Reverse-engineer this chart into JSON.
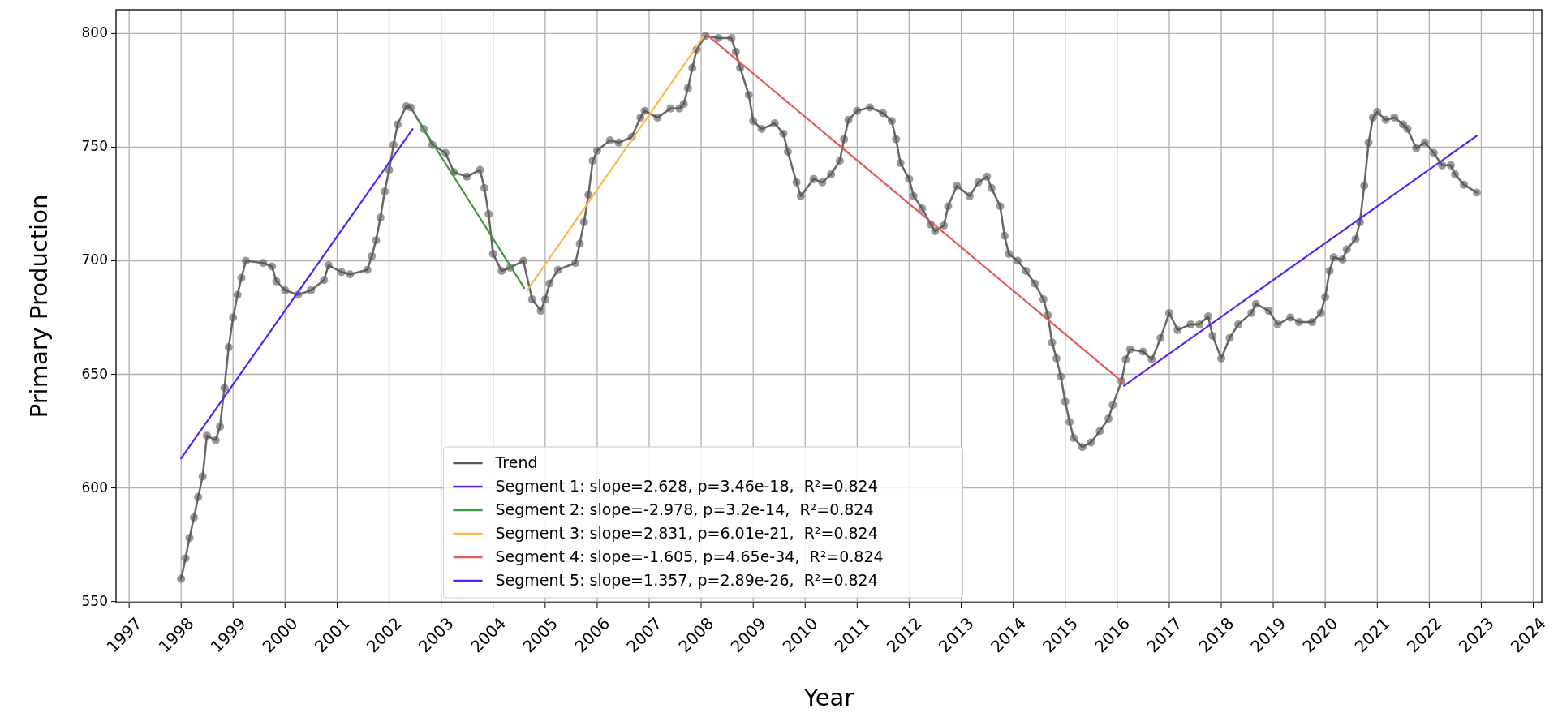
{
  "chart_data": {
    "type": "line",
    "xlabel": "Year",
    "ylabel": "Primary Production",
    "xlim": [
      "1996-10",
      "2024-03"
    ],
    "ylim": [
      549.5,
      810.5
    ],
    "xticks": [
      {
        "value": "1997",
        "label": "1997"
      },
      {
        "value": "1998",
        "label": "1998"
      },
      {
        "value": "1999",
        "label": "1999"
      },
      {
        "value": "2000",
        "label": "2000"
      },
      {
        "value": "2001",
        "label": "2001"
      },
      {
        "value": "2002",
        "label": "2002"
      },
      {
        "value": "2003",
        "label": "2003"
      },
      {
        "value": "2004",
        "label": "2004"
      },
      {
        "value": "2005",
        "label": "2005"
      },
      {
        "value": "2006",
        "label": "2006"
      },
      {
        "value": "2007",
        "label": "2007"
      },
      {
        "value": "2008",
        "label": "2008"
      },
      {
        "value": "2009",
        "label": "2009"
      },
      {
        "value": "2010",
        "label": "2010"
      },
      {
        "value": "2011",
        "label": "2011"
      },
      {
        "value": "2012",
        "label": "2012"
      },
      {
        "value": "2013",
        "label": "2013"
      },
      {
        "value": "2014",
        "label": "2014"
      },
      {
        "value": "2015",
        "label": "2015"
      },
      {
        "value": "2016",
        "label": "2016"
      },
      {
        "value": "2017",
        "label": "2017"
      },
      {
        "value": "2018",
        "label": "2018"
      },
      {
        "value": "2019",
        "label": "2019"
      },
      {
        "value": "2020",
        "label": "2020"
      },
      {
        "value": "2021",
        "label": "2021"
      },
      {
        "value": "2022",
        "label": "2022"
      },
      {
        "value": "2023",
        "label": "2023"
      },
      {
        "value": "2024",
        "label": "2024"
      }
    ],
    "yticks": [
      550,
      600,
      650,
      700,
      750,
      800
    ],
    "grid": true,
    "legend": "bottom",
    "line_style": "solid",
    "series": [
      {
        "name": "Trend",
        "color": "#555555",
        "marker": "circle",
        "x": [
          "1998-01",
          "1998-02",
          "1998-03",
          "1998-04",
          "1998-05",
          "1998-06",
          "1998-07",
          "1998-09",
          "1998-10",
          "1998-11",
          "1998-12",
          "1999-01",
          "1999-02",
          "1999-03",
          "1999-04",
          "1999-08",
          "1999-10",
          "1999-11",
          "2000-01",
          "2000-04",
          "2000-07",
          "2000-10",
          "2000-11",
          "2001-02",
          "2001-04",
          "2001-08",
          "2001-09",
          "2001-10",
          "2001-11",
          "2001-12",
          "2002-01",
          "2002-02",
          "2002-03",
          "2002-05",
          "2002-06",
          "2002-09",
          "2002-11",
          "2003-02",
          "2003-04",
          "2003-07",
          "2003-10",
          "2003-11",
          "2003-12",
          "2004-01",
          "2004-03",
          "2004-05",
          "2004-08",
          "2004-10",
          "2004-12",
          "2005-01",
          "2005-02",
          "2005-04",
          "2005-08",
          "2005-09",
          "2005-10",
          "2005-11",
          "2005-12",
          "2006-01",
          "2006-04",
          "2006-06",
          "2006-09",
          "2006-11",
          "2006-12",
          "2007-03",
          "2007-06",
          "2007-08",
          "2007-09",
          "2007-10",
          "2007-11",
          "2007-12",
          "2008-02",
          "2008-05",
          "2008-08",
          "2008-09",
          "2008-10",
          "2008-12",
          "2009-01",
          "2009-03",
          "2009-06",
          "2009-08",
          "2009-09",
          "2009-11",
          "2009-12",
          "2010-03",
          "2010-05",
          "2010-07",
          "2010-09",
          "2010-10",
          "2010-11",
          "2011-01",
          "2011-04",
          "2011-07",
          "2011-09",
          "2011-10",
          "2011-11",
          "2012-01",
          "2012-02",
          "2012-04",
          "2012-06",
          "2012-07",
          "2012-09",
          "2012-10",
          "2012-12",
          "2013-03",
          "2013-05",
          "2013-07",
          "2013-08",
          "2013-10",
          "2013-11",
          "2013-12",
          "2014-02",
          "2014-04",
          "2014-06",
          "2014-08",
          "2014-09",
          "2014-10",
          "2014-11",
          "2014-12",
          "2015-01",
          "2015-02",
          "2015-03",
          "2015-05",
          "2015-07",
          "2015-09",
          "2015-11",
          "2015-12",
          "2016-02",
          "2016-03",
          "2016-04",
          "2016-07",
          "2016-09",
          "2016-11",
          "2017-01",
          "2017-03",
          "2017-06",
          "2017-08",
          "2017-10",
          "2017-11",
          "2018-01",
          "2018-03",
          "2018-05",
          "2018-08",
          "2018-09",
          "2018-12",
          "2019-02",
          "2019-05",
          "2019-07",
          "2019-10",
          "2019-12",
          "2020-01",
          "2020-02",
          "2020-03",
          "2020-05",
          "2020-06",
          "2020-08",
          "2020-09",
          "2020-10",
          "2020-11",
          "2020-12",
          "2021-01",
          "2021-03",
          "2021-05",
          "2021-07",
          "2021-08",
          "2021-10",
          "2021-12",
          "2022-02",
          "2022-04",
          "2022-06",
          "2022-07",
          "2022-09",
          "2022-12"
        ],
        "values": [
          560,
          569,
          578,
          587,
          596,
          605,
          623,
          621,
          627,
          644,
          662,
          675,
          685,
          692.5,
          700,
          699,
          697.5,
          691,
          687,
          685,
          687,
          691.5,
          698,
          695,
          694,
          696,
          702,
          709,
          719,
          730.5,
          740,
          751,
          760,
          768,
          767.5,
          758,
          751,
          747.5,
          739,
          737,
          740,
          732,
          720.5,
          703,
          695.5,
          697,
          700,
          683,
          678,
          683,
          690,
          696,
          699,
          707.5,
          717,
          729,
          744,
          748.5,
          753,
          752,
          754.5,
          763,
          766,
          763,
          767,
          767,
          769,
          776,
          785,
          793,
          799,
          798,
          798,
          792,
          785,
          773,
          761.5,
          758,
          760.5,
          756,
          748,
          734.5,
          728.5,
          736,
          734.5,
          738,
          744,
          753.5,
          762,
          766,
          767.5,
          765,
          761.5,
          753.5,
          743,
          736,
          728.5,
          723,
          716,
          713,
          715.5,
          724,
          733,
          728.5,
          734.5,
          737,
          732,
          724,
          711,
          703,
          700,
          695.5,
          690,
          683,
          676,
          664,
          657,
          649,
          638,
          629,
          622,
          618,
          620,
          625,
          630.5,
          636.5,
          647,
          656.5,
          661,
          660,
          656.5,
          666,
          677,
          669.5,
          672,
          672,
          675.5,
          667,
          657,
          666,
          672,
          677,
          681,
          678,
          672,
          675,
          673,
          673,
          677,
          684,
          695.5,
          701.5,
          700.5,
          705,
          709.5,
          717,
          733,
          752,
          763,
          765.5,
          762,
          763,
          760,
          758,
          749.5,
          752,
          747.5,
          742,
          742,
          738,
          733.5,
          730
        ]
      },
      {
        "name": "Segment 1: slope=2.628, p=3.46e-18,  R²=0.824",
        "color": "#5b1ff5",
        "x": [
          "1998-01-01",
          "2002-06-15"
        ],
        "values": [
          613,
          758
        ]
      },
      {
        "name": "Segment 2: slope=-2.978, p=3.2e-14,  R²=0.824",
        "color": "#3c9a3c",
        "x": [
          "2002-07-12",
          "2004-08-07"
        ],
        "values": [
          763,
          688
        ]
      },
      {
        "name": "Segment 3: slope=2.831, p=6.01e-21,  R²=0.824",
        "color": "#ffb74d",
        "x": [
          "2004-08-28",
          "2008-01-22"
        ],
        "values": [
          687,
          799
        ]
      },
      {
        "name": "Segment 4: slope=-1.605, p=4.65e-34,  R²=0.824",
        "color": "#e45a5a",
        "x": [
          "2008-02-10",
          "2016-02-10"
        ],
        "values": [
          799.5,
          646.5
        ]
      },
      {
        "name": "Segment 5: slope=1.357, p=2.89e-26,  R²=0.824",
        "color": "#5b1ff5",
        "x": [
          "2016-02-18",
          "2022-12-01"
        ],
        "values": [
          645,
          755
        ]
      }
    ]
  }
}
